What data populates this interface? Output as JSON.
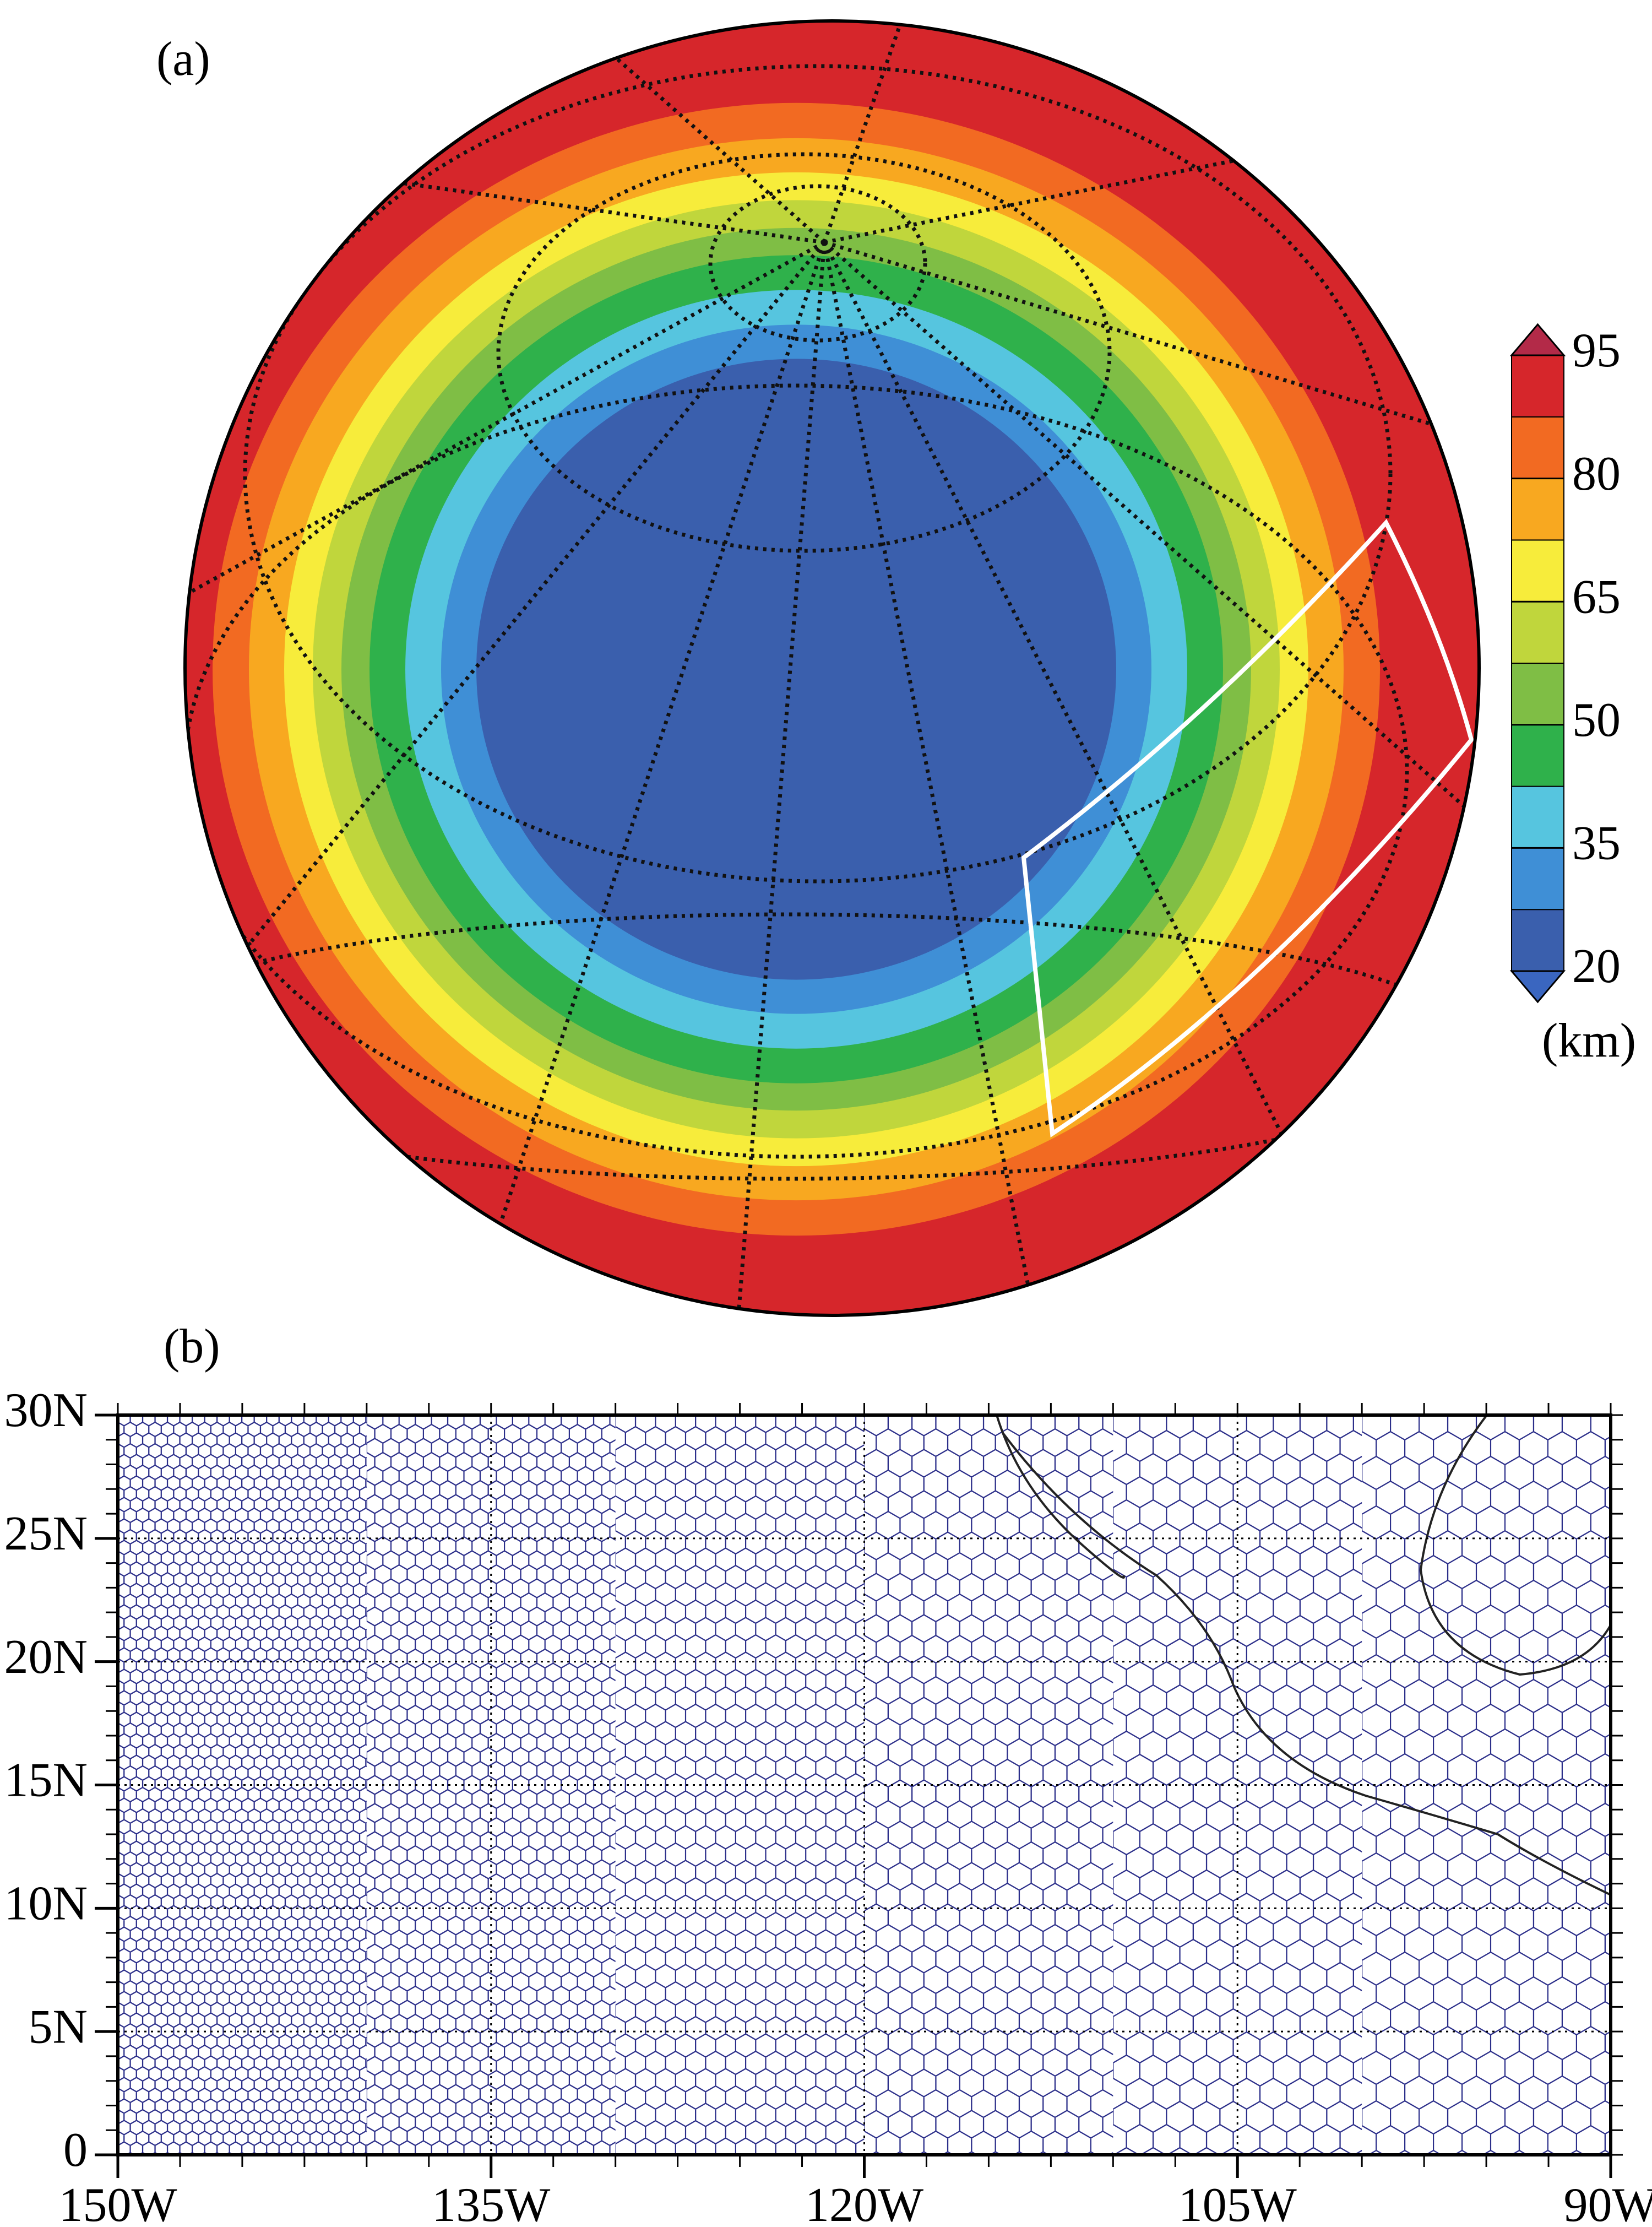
{
  "panel_a": {
    "label": "(a)",
    "colorbar": {
      "ticks": [
        20,
        35,
        50,
        65,
        80,
        95
      ],
      "unit": "(km)",
      "colors": [
        "#3a5fad",
        "#3f8fd6",
        "#56c5df",
        "#2fb14b",
        "#7fbe45",
        "#c0d63c",
        "#f7ec3b",
        "#f8a820",
        "#f26a22",
        "#d6262b"
      ]
    }
  },
  "panel_b": {
    "label": "(b)",
    "xlim": [
      -150,
      -90
    ],
    "ylim": [
      0,
      30
    ],
    "xticks": [
      {
        "value": -150,
        "label": "150W"
      },
      {
        "value": -135,
        "label": "135W"
      },
      {
        "value": -120,
        "label": "120W"
      },
      {
        "value": -105,
        "label": "105W"
      },
      {
        "value": -90,
        "label": "90W"
      }
    ],
    "yticks": [
      0,
      {
        "value": 5,
        "label": "5N"
      },
      {
        "value": 10,
        "label": "10N"
      },
      {
        "value": 15,
        "label": "15N"
      },
      {
        "value": 20,
        "label": "20N"
      },
      {
        "value": 25,
        "label": "25N"
      },
      {
        "value": 30,
        "label": "30N"
      }
    ]
  }
}
